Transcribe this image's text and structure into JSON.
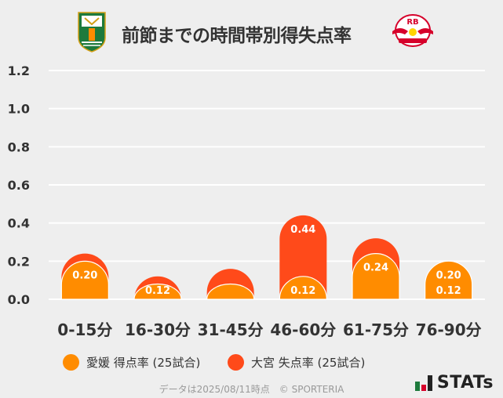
{
  "header": {
    "title": "前節までの時間帯別得失点率",
    "home_emblem_label": "愛媛",
    "away_emblem_label": "RB"
  },
  "chart_data": {
    "type": "bar",
    "title": "前節までの時間帯別得失点率",
    "categories": [
      "0-15分",
      "16-30分",
      "31-45分",
      "46-60分",
      "61-75分",
      "76-90分"
    ],
    "series": [
      {
        "name": "愛媛 得点率 (25試合)",
        "color": "#ff8c00",
        "values": [
          0.2,
          0.08,
          0.08,
          0.12,
          0.24,
          0.2
        ],
        "labels": [
          "0.20",
          "",
          "",
          "0.12",
          "0.24",
          "0.20"
        ]
      },
      {
        "name": "大宮 失点率 (25試合)",
        "color": "#ff4a1a",
        "values": [
          0.24,
          0.12,
          0.16,
          0.44,
          0.32,
          0.12
        ],
        "labels": [
          "",
          "0.12",
          "",
          "0.44",
          "",
          "0.12"
        ]
      }
    ],
    "yticks": [
      "1.2",
      "1.0",
      "0.8",
      "0.6",
      "0.4",
      "0.2",
      "0.0"
    ],
    "ylim": [
      0,
      1.2
    ],
    "grid": true
  },
  "legend": {
    "items": [
      {
        "label": "愛媛 得点率 (25試合)",
        "color": "#ff8c00"
      },
      {
        "label": "大宮 失点率 (25試合)",
        "color": "#ff4a1a"
      }
    ]
  },
  "footer": {
    "text": "データは2025/08/11時点　© SPORTERIA",
    "brand": "STATs"
  }
}
